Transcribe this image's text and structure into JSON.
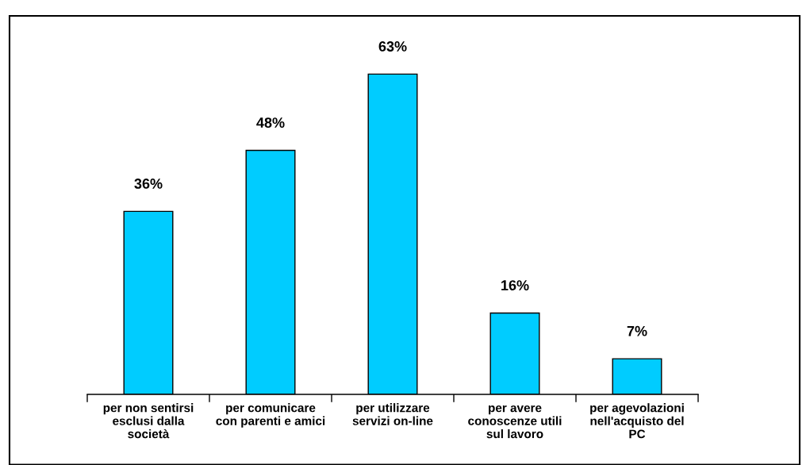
{
  "chart_data": {
    "type": "bar",
    "categories": [
      "per non sentirsi\nesclusi dalla\nsocietà",
      "per comunicare\ncon parenti e amici",
      "per utilizzare\nservizi on-line",
      "per avere\nconoscenze utili\nsul lavoro",
      "per agevolazioni\nnell'acquisto del\nPC"
    ],
    "values": [
      36,
      48,
      63,
      16,
      7
    ],
    "color": "#00ccff",
    "value_labels": [
      "36%",
      "48%",
      "63%",
      "16%",
      "7%"
    ]
  }
}
